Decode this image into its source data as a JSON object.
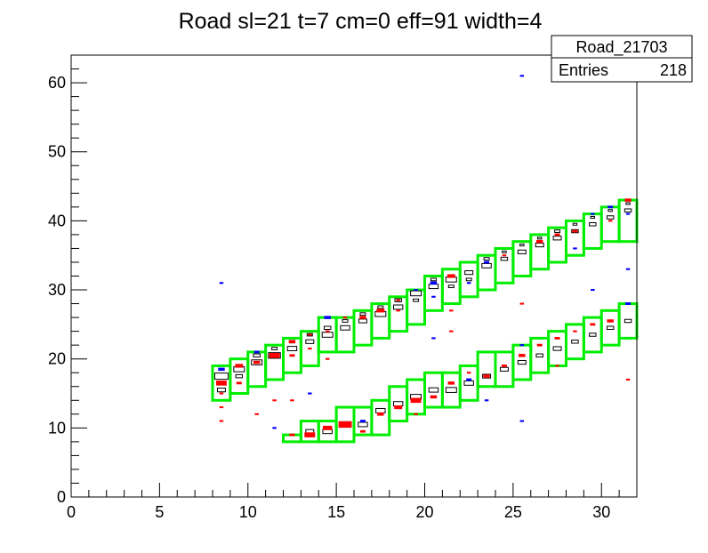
{
  "chart_data": {
    "type": "heatmap",
    "title": "Road sl=21 t=7 cm=0 eff=91 width=4",
    "xlabel": "",
    "ylabel": "",
    "xlim": [
      0,
      32
    ],
    "ylim": [
      0,
      64
    ],
    "x_ticks": [
      "0",
      "5",
      "10",
      "15",
      "20",
      "25",
      "30"
    ],
    "y_ticks": [
      "0",
      "10",
      "20",
      "30",
      "40",
      "50",
      "60"
    ],
    "stats_box": {
      "name": "Road_21703",
      "entries_label": "Entries",
      "entries_value": "218"
    },
    "colors": {
      "road": "#00ee00",
      "hit_red": "#ff0000",
      "hit_blue": "#0000ff",
      "hist": "#000000"
    },
    "roads": [
      {
        "band": "upper",
        "x": 8,
        "y_range": [
          14,
          19
        ]
      },
      {
        "band": "upper",
        "x": 9,
        "y_range": [
          15,
          20
        ]
      },
      {
        "band": "upper",
        "x": 10,
        "y_range": [
          16,
          21
        ]
      },
      {
        "band": "upper",
        "x": 11,
        "y_range": [
          17,
          22
        ]
      },
      {
        "band": "upper",
        "x": 12,
        "y_range": [
          18,
          23
        ]
      },
      {
        "band": "upper",
        "x": 13,
        "y_range": [
          19,
          24
        ]
      },
      {
        "band": "upper",
        "x": 14,
        "y_range": [
          21,
          26
        ]
      },
      {
        "band": "upper",
        "x": 15,
        "y_range": [
          21,
          26
        ]
      },
      {
        "band": "upper",
        "x": 16,
        "y_range": [
          22,
          27
        ]
      },
      {
        "band": "upper",
        "x": 17,
        "y_range": [
          23,
          28
        ]
      },
      {
        "band": "upper",
        "x": 18,
        "y_range": [
          24,
          29
        ]
      },
      {
        "band": "upper",
        "x": 19,
        "y_range": [
          25,
          30
        ]
      },
      {
        "band": "upper",
        "x": 20,
        "y_range": [
          27,
          32
        ]
      },
      {
        "band": "upper",
        "x": 21,
        "y_range": [
          28,
          33
        ]
      },
      {
        "band": "upper",
        "x": 22,
        "y_range": [
          29,
          34
        ]
      },
      {
        "band": "upper",
        "x": 23,
        "y_range": [
          30,
          35
        ]
      },
      {
        "band": "upper",
        "x": 24,
        "y_range": [
          31,
          36
        ]
      },
      {
        "band": "upper",
        "x": 25,
        "y_range": [
          32,
          37
        ]
      },
      {
        "band": "upper",
        "x": 26,
        "y_range": [
          33,
          38
        ]
      },
      {
        "band": "upper",
        "x": 27,
        "y_range": [
          34,
          39
        ]
      },
      {
        "band": "upper",
        "x": 28,
        "y_range": [
          35,
          40
        ]
      },
      {
        "band": "upper",
        "x": 29,
        "y_range": [
          36,
          41
        ]
      },
      {
        "band": "upper",
        "x": 30,
        "y_range": [
          37,
          42
        ]
      },
      {
        "band": "upper",
        "x": 31,
        "y_range": [
          37,
          43
        ]
      },
      {
        "band": "lower",
        "x": 12,
        "y_range": [
          8,
          9
        ]
      },
      {
        "band": "lower",
        "x": 13,
        "y_range": [
          8,
          11
        ]
      },
      {
        "band": "lower",
        "x": 14,
        "y_range": [
          8,
          11
        ]
      },
      {
        "band": "lower",
        "x": 15,
        "y_range": [
          8,
          13
        ]
      },
      {
        "band": "lower",
        "x": 16,
        "y_range": [
          9,
          13
        ]
      },
      {
        "band": "lower",
        "x": 17,
        "y_range": [
          9,
          14
        ]
      },
      {
        "band": "lower",
        "x": 18,
        "y_range": [
          11,
          16
        ]
      },
      {
        "band": "lower",
        "x": 19,
        "y_range": [
          12,
          17
        ]
      },
      {
        "band": "lower",
        "x": 20,
        "y_range": [
          13,
          18
        ]
      },
      {
        "band": "lower",
        "x": 21,
        "y_range": [
          13,
          18
        ]
      },
      {
        "band": "lower",
        "x": 22,
        "y_range": [
          14,
          19
        ]
      },
      {
        "band": "lower",
        "x": 23,
        "y_range": [
          16,
          21
        ]
      },
      {
        "band": "lower",
        "x": 24,
        "y_range": [
          16,
          21
        ]
      },
      {
        "band": "lower",
        "x": 25,
        "y_range": [
          17,
          22
        ]
      },
      {
        "band": "lower",
        "x": 26,
        "y_range": [
          18,
          23
        ]
      },
      {
        "band": "lower",
        "x": 27,
        "y_range": [
          19,
          24
        ]
      },
      {
        "band": "lower",
        "x": 28,
        "y_range": [
          20,
          25
        ]
      },
      {
        "band": "lower",
        "x": 29,
        "y_range": [
          21,
          26
        ]
      },
      {
        "band": "lower",
        "x": 30,
        "y_range": [
          22,
          27
        ]
      },
      {
        "band": "lower",
        "x": 31,
        "y_range": [
          23,
          28
        ]
      }
    ],
    "hist_bins": [
      {
        "x": 8,
        "y": 17,
        "w": 1.0
      },
      {
        "x": 8,
        "y": 15,
        "w": 0.6
      },
      {
        "x": 9,
        "y": 18,
        "w": 0.8
      },
      {
        "x": 9,
        "y": 17,
        "w": 0.5
      },
      {
        "x": 10,
        "y": 19,
        "w": 0.8
      },
      {
        "x": 10,
        "y": 20,
        "w": 0.5
      },
      {
        "x": 11,
        "y": 20,
        "w": 0.9
      },
      {
        "x": 11,
        "y": 21,
        "w": 0.4
      },
      {
        "x": 12,
        "y": 21,
        "w": 0.7
      },
      {
        "x": 12,
        "y": 22,
        "w": 0.4
      },
      {
        "x": 13,
        "y": 22,
        "w": 0.6
      },
      {
        "x": 13,
        "y": 23,
        "w": 0.4
      },
      {
        "x": 14,
        "y": 23,
        "w": 0.8
      },
      {
        "x": 14,
        "y": 24,
        "w": 0.5
      },
      {
        "x": 15,
        "y": 24,
        "w": 0.7
      },
      {
        "x": 15,
        "y": 25,
        "w": 0.4
      },
      {
        "x": 16,
        "y": 25,
        "w": 0.6
      },
      {
        "x": 16,
        "y": 26,
        "w": 0.4
      },
      {
        "x": 17,
        "y": 26,
        "w": 0.8
      },
      {
        "x": 17,
        "y": 27,
        "w": 0.4
      },
      {
        "x": 18,
        "y": 27,
        "w": 0.7
      },
      {
        "x": 18,
        "y": 28,
        "w": 0.5
      },
      {
        "x": 19,
        "y": 29,
        "w": 0.8
      },
      {
        "x": 19,
        "y": 28,
        "w": 0.4
      },
      {
        "x": 20,
        "y": 30,
        "w": 0.7
      },
      {
        "x": 20,
        "y": 31,
        "w": 0.4
      },
      {
        "x": 21,
        "y": 31,
        "w": 0.8
      },
      {
        "x": 21,
        "y": 30,
        "w": 0.4
      },
      {
        "x": 22,
        "y": 32,
        "w": 0.6
      },
      {
        "x": 22,
        "y": 31,
        "w": 0.4
      },
      {
        "x": 23,
        "y": 33,
        "w": 0.7
      },
      {
        "x": 23,
        "y": 34,
        "w": 0.4
      },
      {
        "x": 24,
        "y": 34,
        "w": 0.5
      },
      {
        "x": 24,
        "y": 35,
        "w": 0.3
      },
      {
        "x": 25,
        "y": 35,
        "w": 0.6
      },
      {
        "x": 25,
        "y": 36,
        "w": 0.3
      },
      {
        "x": 26,
        "y": 36,
        "w": 0.6
      },
      {
        "x": 26,
        "y": 37,
        "w": 0.3
      },
      {
        "x": 27,
        "y": 37,
        "w": 0.6
      },
      {
        "x": 27,
        "y": 38,
        "w": 0.4
      },
      {
        "x": 28,
        "y": 38,
        "w": 0.5
      },
      {
        "x": 28,
        "y": 39,
        "w": 0.3
      },
      {
        "x": 29,
        "y": 39,
        "w": 0.5
      },
      {
        "x": 29,
        "y": 40,
        "w": 0.3
      },
      {
        "x": 30,
        "y": 40,
        "w": 0.5
      },
      {
        "x": 30,
        "y": 41,
        "w": 0.3
      },
      {
        "x": 31,
        "y": 41,
        "w": 0.5
      },
      {
        "x": 31,
        "y": 42,
        "w": 0.3
      },
      {
        "x": 13,
        "y": 9,
        "w": 0.6
      },
      {
        "x": 14,
        "y": 9,
        "w": 0.7
      },
      {
        "x": 15,
        "y": 10,
        "w": 0.9
      },
      {
        "x": 16,
        "y": 10,
        "w": 0.7
      },
      {
        "x": 17,
        "y": 12,
        "w": 0.7
      },
      {
        "x": 18,
        "y": 13,
        "w": 0.7
      },
      {
        "x": 19,
        "y": 14,
        "w": 0.8
      },
      {
        "x": 20,
        "y": 15,
        "w": 0.7
      },
      {
        "x": 21,
        "y": 15,
        "w": 0.8
      },
      {
        "x": 22,
        "y": 16,
        "w": 0.7
      },
      {
        "x": 23,
        "y": 17,
        "w": 0.6
      },
      {
        "x": 24,
        "y": 18,
        "w": 0.6
      },
      {
        "x": 25,
        "y": 19,
        "w": 0.6
      },
      {
        "x": 26,
        "y": 20,
        "w": 0.5
      },
      {
        "x": 27,
        "y": 21,
        "w": 0.6
      },
      {
        "x": 28,
        "y": 22,
        "w": 0.5
      },
      {
        "x": 29,
        "y": 23,
        "w": 0.5
      },
      {
        "x": 30,
        "y": 24,
        "w": 0.5
      },
      {
        "x": 31,
        "y": 25,
        "w": 0.5
      }
    ],
    "hits": [
      {
        "x": 8,
        "y": 16,
        "c": "red",
        "w": 0.8
      },
      {
        "x": 8,
        "y": 18,
        "c": "blue",
        "w": 0.5
      },
      {
        "x": 8,
        "y": 10.5,
        "c": "red",
        "w": 0.3
      },
      {
        "x": 8,
        "y": 12.5,
        "c": "red",
        "w": 0.3
      },
      {
        "x": 8,
        "y": 30.5,
        "c": "blue",
        "w": 0.3
      },
      {
        "x": 8,
        "y": 14.5,
        "c": "red",
        "w": 0.3
      },
      {
        "x": 9,
        "y": 18.5,
        "c": "red",
        "w": 0.6
      },
      {
        "x": 9,
        "y": 16,
        "c": "red",
        "w": 0.4
      },
      {
        "x": 10,
        "y": 20.5,
        "c": "blue",
        "w": 0.4
      },
      {
        "x": 10,
        "y": 19,
        "c": "red",
        "w": 0.5
      },
      {
        "x": 10,
        "y": 11.5,
        "c": "red",
        "w": 0.3
      },
      {
        "x": 11,
        "y": 20,
        "c": "red",
        "w": 0.8
      },
      {
        "x": 11,
        "y": 9.5,
        "c": "blue",
        "w": 0.3
      },
      {
        "x": 11,
        "y": 13.5,
        "c": "red",
        "w": 0.3
      },
      {
        "x": 12,
        "y": 22,
        "c": "red",
        "w": 0.5
      },
      {
        "x": 12,
        "y": 20,
        "c": "red",
        "w": 0.4
      },
      {
        "x": 12,
        "y": 13.5,
        "c": "red",
        "w": 0.3
      },
      {
        "x": 12,
        "y": 8.5,
        "c": "red",
        "w": 0.4
      },
      {
        "x": 13,
        "y": 8.5,
        "c": "red",
        "w": 0.8
      },
      {
        "x": 13,
        "y": 23,
        "c": "red",
        "w": 0.3
      },
      {
        "x": 13,
        "y": 14.5,
        "c": "blue",
        "w": 0.3
      },
      {
        "x": 13,
        "y": 21,
        "c": "red",
        "w": 0.3
      },
      {
        "x": 14,
        "y": 25.5,
        "c": "blue",
        "w": 0.5
      },
      {
        "x": 14,
        "y": 9.5,
        "c": "red",
        "w": 0.7
      },
      {
        "x": 14,
        "y": 19.5,
        "c": "red",
        "w": 0.3
      },
      {
        "x": 14,
        "y": 23.5,
        "c": "red",
        "w": 0.3
      },
      {
        "x": 15,
        "y": 10,
        "c": "red",
        "w": 1.0
      },
      {
        "x": 15,
        "y": 25.5,
        "c": "red",
        "w": 0.3
      },
      {
        "x": 16,
        "y": 10.5,
        "c": "blue",
        "w": 0.4
      },
      {
        "x": 16,
        "y": 9,
        "c": "red",
        "w": 0.4
      },
      {
        "x": 16,
        "y": 25.5,
        "c": "red",
        "w": 0.5
      },
      {
        "x": 17,
        "y": 26.5,
        "c": "red",
        "w": 0.6
      },
      {
        "x": 17,
        "y": 11.5,
        "c": "red",
        "w": 0.5
      },
      {
        "x": 18,
        "y": 12.5,
        "c": "red",
        "w": 0.6
      },
      {
        "x": 18,
        "y": 26.5,
        "c": "red",
        "w": 0.3
      },
      {
        "x": 18,
        "y": 28,
        "c": "red",
        "w": 0.3
      },
      {
        "x": 19,
        "y": 13.5,
        "c": "red",
        "w": 0.8
      },
      {
        "x": 19,
        "y": 29.5,
        "c": "blue",
        "w": 0.3
      },
      {
        "x": 19,
        "y": 11.5,
        "c": "red",
        "w": 0.3
      },
      {
        "x": 20,
        "y": 30.5,
        "c": "blue",
        "w": 0.5
      },
      {
        "x": 20,
        "y": 14,
        "c": "red",
        "w": 0.5
      },
      {
        "x": 20,
        "y": 22.5,
        "c": "blue",
        "w": 0.3
      },
      {
        "x": 20,
        "y": 28.5,
        "c": "blue",
        "w": 0.3
      },
      {
        "x": 21,
        "y": 31.5,
        "c": "red",
        "w": 0.6
      },
      {
        "x": 21,
        "y": 16,
        "c": "red",
        "w": 0.5
      },
      {
        "x": 21,
        "y": 26.5,
        "c": "red",
        "w": 0.3
      },
      {
        "x": 21,
        "y": 23.5,
        "c": "red",
        "w": 0.3
      },
      {
        "x": 22,
        "y": 16.5,
        "c": "blue",
        "w": 0.4
      },
      {
        "x": 22,
        "y": 30.5,
        "c": "blue",
        "w": 0.3
      },
      {
        "x": 22,
        "y": 17.5,
        "c": "red",
        "w": 0.3
      },
      {
        "x": 23,
        "y": 17,
        "c": "red",
        "w": 0.5
      },
      {
        "x": 23,
        "y": 33.5,
        "c": "blue",
        "w": 0.4
      },
      {
        "x": 23,
        "y": 13.5,
        "c": "blue",
        "w": 0.3
      },
      {
        "x": 24,
        "y": 18.5,
        "c": "red",
        "w": 0.4
      },
      {
        "x": 24,
        "y": 34.5,
        "c": "red",
        "w": 0.3
      },
      {
        "x": 25,
        "y": 20,
        "c": "red",
        "w": 0.5
      },
      {
        "x": 25,
        "y": 60.5,
        "c": "blue",
        "w": 0.3
      },
      {
        "x": 25,
        "y": 27.5,
        "c": "red",
        "w": 0.3
      },
      {
        "x": 25,
        "y": 10.5,
        "c": "blue",
        "w": 0.3
      },
      {
        "x": 25,
        "y": 21.5,
        "c": "blue",
        "w": 0.3
      },
      {
        "x": 26,
        "y": 36.5,
        "c": "red",
        "w": 0.5
      },
      {
        "x": 26,
        "y": 21.5,
        "c": "red",
        "w": 0.4
      },
      {
        "x": 27,
        "y": 37.5,
        "c": "red",
        "w": 0.4
      },
      {
        "x": 27,
        "y": 22.5,
        "c": "red",
        "w": 0.4
      },
      {
        "x": 27,
        "y": 18.5,
        "c": "red",
        "w": 0.3
      },
      {
        "x": 28,
        "y": 38,
        "c": "red",
        "w": 0.4
      },
      {
        "x": 28,
        "y": 23.5,
        "c": "red",
        "w": 0.3
      },
      {
        "x": 28,
        "y": 35.5,
        "c": "blue",
        "w": 0.3
      },
      {
        "x": 29,
        "y": 40.5,
        "c": "blue",
        "w": 0.3
      },
      {
        "x": 29,
        "y": 24.5,
        "c": "red",
        "w": 0.4
      },
      {
        "x": 29,
        "y": 29.5,
        "c": "blue",
        "w": 0.3
      },
      {
        "x": 30,
        "y": 41.5,
        "c": "blue",
        "w": 0.4
      },
      {
        "x": 30,
        "y": 25,
        "c": "red",
        "w": 0.5
      },
      {
        "x": 30,
        "y": 39.5,
        "c": "red",
        "w": 0.3
      },
      {
        "x": 31,
        "y": 42.5,
        "c": "red",
        "w": 0.5
      },
      {
        "x": 31,
        "y": 27.5,
        "c": "blue",
        "w": 0.4
      },
      {
        "x": 31,
        "y": 32.5,
        "c": "blue",
        "w": 0.3
      },
      {
        "x": 31,
        "y": 16.5,
        "c": "red",
        "w": 0.3
      },
      {
        "x": 31,
        "y": 40.5,
        "c": "blue",
        "w": 0.3
      }
    ]
  }
}
